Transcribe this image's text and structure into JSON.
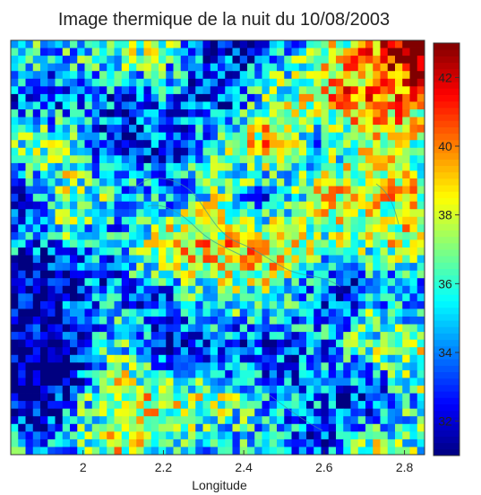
{
  "chart_data": {
    "type": "heatmap",
    "title": "Image thermique de la nuit du 10/08/2003",
    "xlabel": "Longitude",
    "ylabel": "",
    "xlim": [
      1.82,
      2.85
    ],
    "xticks": [
      "2",
      "2.2",
      "2.4",
      "2.6",
      "2.8"
    ],
    "xtick_values": [
      2.0,
      2.2,
      2.4,
      2.6,
      2.8
    ],
    "colorbar": {
      "min": 31.0,
      "max": 43.0,
      "ticks": [
        "32",
        "34",
        "36",
        "38",
        "40",
        "42"
      ],
      "tick_values": [
        32,
        34,
        36,
        38,
        40,
        42
      ],
      "colormap": "jet"
    },
    "grid": false,
    "overlay": "river-and-boundary contour lines",
    "grid_cols": 56,
    "grid_rows": 54,
    "value_field_description": "land surface temperature field; cooler zones (~31-33) west and southwest, warm urban core (~37-38) centre, hottest (~40-43) north-east"
  }
}
